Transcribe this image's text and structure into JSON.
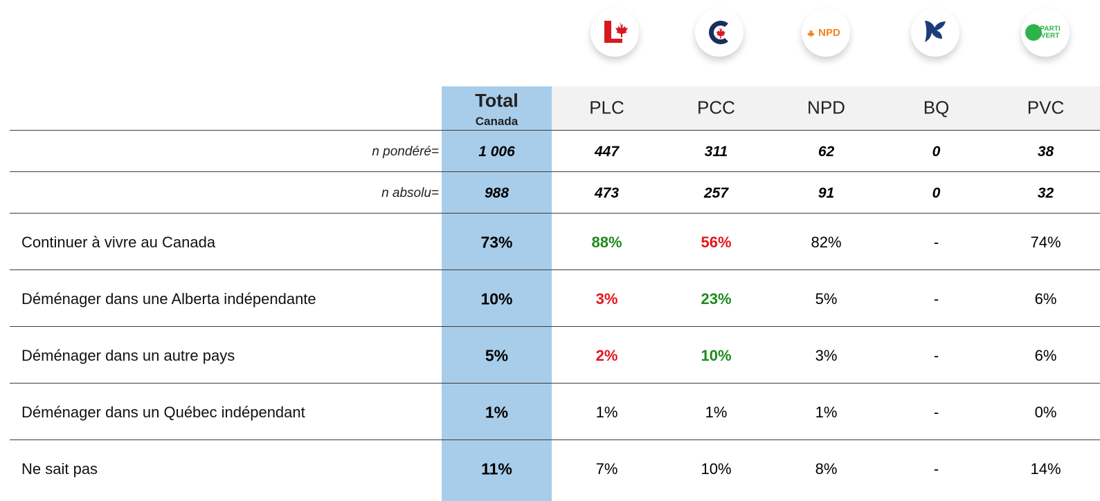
{
  "logos": {
    "npd": "NPD",
    "pvc_line1": "PARTI",
    "pvc_line2": "VERT"
  },
  "header": {
    "total": "Total",
    "total_sub": "Canada",
    "parties": [
      "PLC",
      "PCC",
      "NPD",
      "BQ",
      "PVC"
    ]
  },
  "counts": [
    {
      "label": "n pondéré=",
      "total": "1 006",
      "cells": [
        "447",
        "311",
        "62",
        "0",
        "38"
      ]
    },
    {
      "label": "n absolu=",
      "total": "988",
      "cells": [
        "473",
        "257",
        "91",
        "0",
        "32"
      ]
    }
  ],
  "rows": [
    {
      "label": "Continuer à vivre au Canada",
      "total": "73%",
      "cells": [
        "88%",
        "56%",
        "82%",
        "-",
        "74%"
      ],
      "colors": [
        "#1e8a1e",
        "#e8141c",
        "#000000",
        "#000000",
        "#000000"
      ],
      "bold": [
        true,
        true,
        false,
        false,
        false
      ]
    },
    {
      "label": "Déménager dans une Alberta indépendante",
      "total": "10%",
      "cells": [
        "3%",
        "23%",
        "5%",
        "-",
        "6%"
      ],
      "colors": [
        "#e8141c",
        "#1e8a1e",
        "#000000",
        "#000000",
        "#000000"
      ],
      "bold": [
        true,
        true,
        false,
        false,
        false
      ]
    },
    {
      "label": "Déménager dans un autre pays",
      "total": "5%",
      "cells": [
        "2%",
        "10%",
        "3%",
        "-",
        "6%"
      ],
      "colors": [
        "#e8141c",
        "#1e8a1e",
        "#000000",
        "#000000",
        "#000000"
      ],
      "bold": [
        true,
        true,
        false,
        false,
        false
      ]
    },
    {
      "label": "Déménager dans un Québec indépendant",
      "total": "1%",
      "cells": [
        "1%",
        "1%",
        "1%",
        "-",
        "0%"
      ],
      "colors": [
        "#000000",
        "#000000",
        "#000000",
        "#000000",
        "#000000"
      ],
      "bold": [
        false,
        false,
        false,
        false,
        false
      ]
    },
    {
      "label": "Ne sait pas",
      "total": "11%",
      "cells": [
        "7%",
        "10%",
        "8%",
        "-",
        "14%"
      ],
      "colors": [
        "#000000",
        "#000000",
        "#000000",
        "#000000",
        "#000000"
      ],
      "bold": [
        false,
        false,
        false,
        false,
        false
      ]
    }
  ]
}
